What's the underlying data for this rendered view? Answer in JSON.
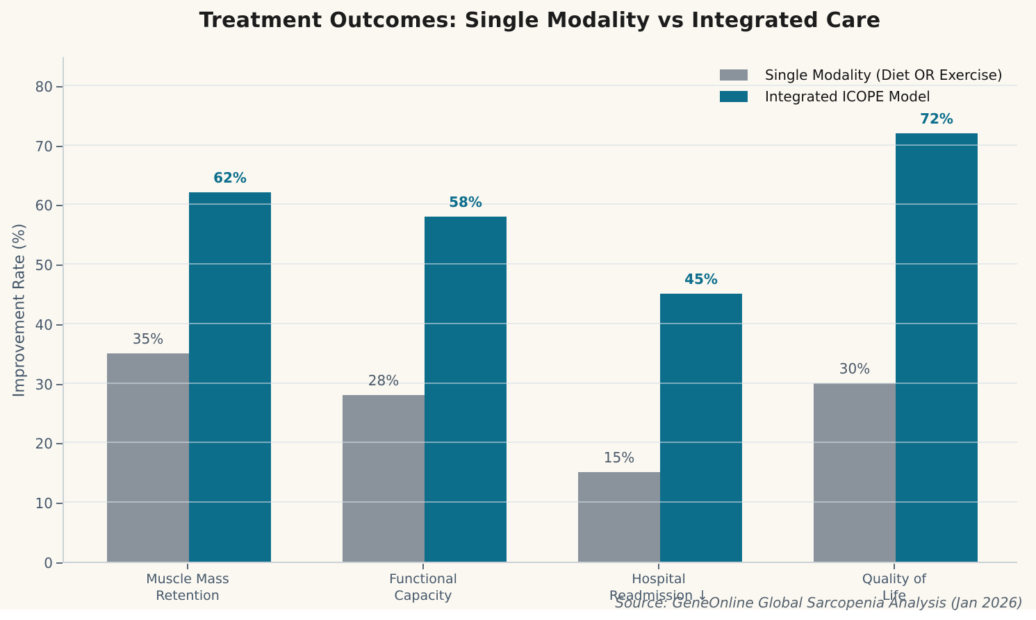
{
  "colors": {
    "background": "#FAF8F1",
    "axis_text": "#47586B",
    "title_text": "#1C1C1C",
    "grid": "#DCE4E9",
    "single_modality_bar": "#8A929B",
    "integrated_icope_bar": "#0D6E8C",
    "source_text": "#55616E"
  },
  "source_note": "Source: GeneOnline Global Sarcopenia Analysis (Jan 2026)",
  "chart_data": {
    "type": "bar",
    "title": "Treatment Outcomes: Single Modality vs Integrated Care",
    "xlabel": "",
    "ylabel": "Improvement Rate (%)",
    "categories": [
      "Muscle Mass\nRetention",
      "Functional\nCapacity",
      "Hospital\nReadmission ↓",
      "Quality of\nLife"
    ],
    "series": [
      {
        "name": "Single Modality (Diet OR Exercise)",
        "color": "#8A929B",
        "values": [
          35,
          28,
          15,
          30
        ],
        "labels": [
          "35%",
          "28%",
          "15%",
          "30%"
        ]
      },
      {
        "name": "Integrated ICOPE Model",
        "color": "#0D6E8C",
        "values": [
          62,
          58,
          45,
          72
        ],
        "labels": [
          "62%",
          "58%",
          "45%",
          "72%"
        ]
      }
    ],
    "ylim": [
      0,
      85
    ],
    "yticks": [
      0,
      10,
      20,
      30,
      40,
      50,
      60,
      70,
      80
    ],
    "grid": true,
    "legend_position": "upper right"
  }
}
